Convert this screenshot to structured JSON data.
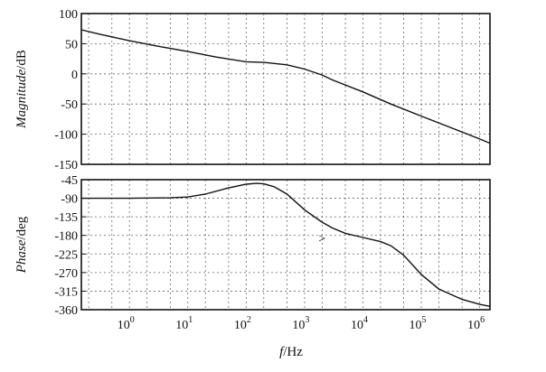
{
  "chart_data": [
    {
      "type": "line",
      "xlabel": "f/Hz",
      "ylabel": "Magnitude/dB",
      "x_scale": "log",
      "xlim": [
        0.15,
        1500000
      ],
      "ylim": [
        -150,
        100
      ],
      "yticks": [
        "100",
        "50",
        "0",
        "-50",
        "-100",
        "-150"
      ],
      "grid": true,
      "series": [
        {
          "x": [
            0.15,
            0.3,
            1,
            3,
            10,
            30,
            100,
            200,
            500,
            1000,
            2000,
            3000,
            10000,
            30000,
            100000,
            300000,
            1000000,
            1500000
          ],
          "y": [
            73,
            66,
            55,
            46,
            37,
            28,
            20,
            19,
            15,
            8,
            -2,
            -10,
            -30,
            -50,
            -70,
            -88,
            -108,
            -115
          ]
        }
      ]
    },
    {
      "type": "line",
      "xlabel": "f/Hz",
      "ylabel": "Phase/deg",
      "x_scale": "log",
      "xlim": [
        0.15,
        1500000
      ],
      "ylim": [
        -360,
        -45
      ],
      "yticks": [
        "-45",
        "-90",
        "-135",
        "-180",
        "-225",
        "-270",
        "-315",
        "-360"
      ],
      "xticks": [
        "10^0",
        "10^1",
        "10^2",
        "10^3",
        "10^4",
        "10^5",
        "10^6"
      ],
      "grid": true,
      "series": [
        {
          "x": [
            0.15,
            1,
            5,
            10,
            20,
            50,
            100,
            150,
            200,
            300,
            500,
            1000,
            2000,
            3000,
            5000,
            10000,
            20000,
            30000,
            50000,
            100000,
            200000,
            500000,
            1000000,
            1500000
          ],
          "y": [
            -90,
            -90,
            -89,
            -87,
            -80,
            -65,
            -56,
            -54,
            -55,
            -62,
            -80,
            -118,
            -148,
            -162,
            -175,
            -185,
            -195,
            -205,
            -228,
            -275,
            -310,
            -335,
            -347,
            -352
          ]
        }
      ],
      "annotations": [
        ">"
      ]
    }
  ]
}
